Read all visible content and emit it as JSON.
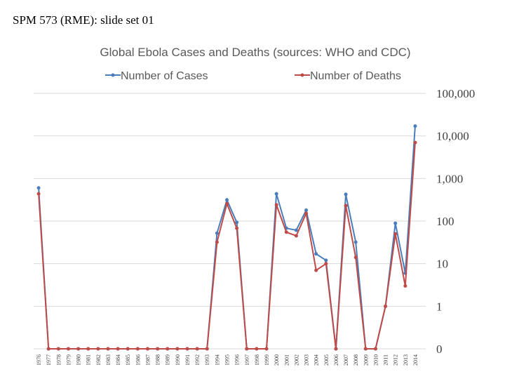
{
  "header": {
    "title": "SPM 573 (RME): slide set 01"
  },
  "chart_data": {
    "type": "line",
    "title": "Global Ebola Cases and Deaths (sources: WHO and CDC)",
    "categories": [
      "1976",
      "1977",
      "1978",
      "1979",
      "1980",
      "1981",
      "1982",
      "1983",
      "1984",
      "1985",
      "1986",
      "1987",
      "1988",
      "1989",
      "1990",
      "1991",
      "1992",
      "1993",
      "1994",
      "1995",
      "1996",
      "1997",
      "1998",
      "1999",
      "2000",
      "2001",
      "2002",
      "2003",
      "2004",
      "2005",
      "2006",
      "2007",
      "2008",
      "2009",
      "2010",
      "2011",
      "2012",
      "2013",
      "2014"
    ],
    "series": [
      {
        "name": "Number of Cases",
        "color": "#4a7ebb",
        "values": [
          600,
          0,
          0,
          0,
          0,
          0,
          0,
          0,
          0,
          0,
          0,
          0,
          0,
          0,
          0,
          0,
          0,
          0,
          52,
          315,
          93,
          0,
          0,
          0,
          437,
          68,
          61,
          180,
          17,
          12,
          0,
          425,
          32,
          0,
          0,
          1,
          89,
          6,
          17000
        ]
      },
      {
        "name": "Number of Deaths",
        "color": "#be4b48",
        "values": [
          437,
          0,
          0,
          0,
          0,
          0,
          0,
          0,
          0,
          0,
          0,
          0,
          0,
          0,
          0,
          0,
          0,
          0,
          32,
          256,
          68,
          0,
          0,
          0,
          240,
          55,
          45,
          152,
          7,
          10,
          0,
          230,
          14,
          0,
          0,
          1,
          50,
          3,
          7000
        ]
      }
    ],
    "ylim": [
      0,
      100000
    ],
    "yticks": [
      0,
      1,
      10,
      100,
      {
        "value": 1000,
        "label": "1,000"
      },
      {
        "value": 10000,
        "label": "10,000"
      },
      {
        "value": 100000,
        "label": "100,000"
      }
    ],
    "log_scale": true,
    "grid": true,
    "legend": "top"
  }
}
